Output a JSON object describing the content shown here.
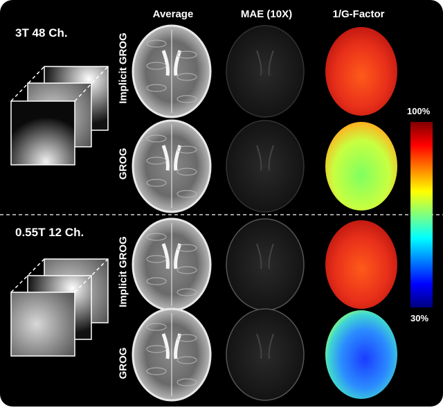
{
  "columns": {
    "average": "Average",
    "mae": "MAE (10X)",
    "gfactor": "1/G-Factor"
  },
  "sections": [
    {
      "label": "3T 48 Ch.",
      "rows": [
        "Implicit GROG",
        "GROG"
      ]
    },
    {
      "label": "0.55T 12 Ch.",
      "rows": [
        "Implicit GROG",
        "GROG"
      ]
    }
  ],
  "colorbar": {
    "max_label": "100%",
    "min_label": "30%"
  },
  "colors": {
    "background": "#000000",
    "divider": "#ffffff",
    "colormap": [
      "#00007f",
      "#0000ff",
      "#007fff",
      "#00ffff",
      "#7fff7f",
      "#ffff00",
      "#ff7f00",
      "#ff0000",
      "#7f0000"
    ]
  }
}
